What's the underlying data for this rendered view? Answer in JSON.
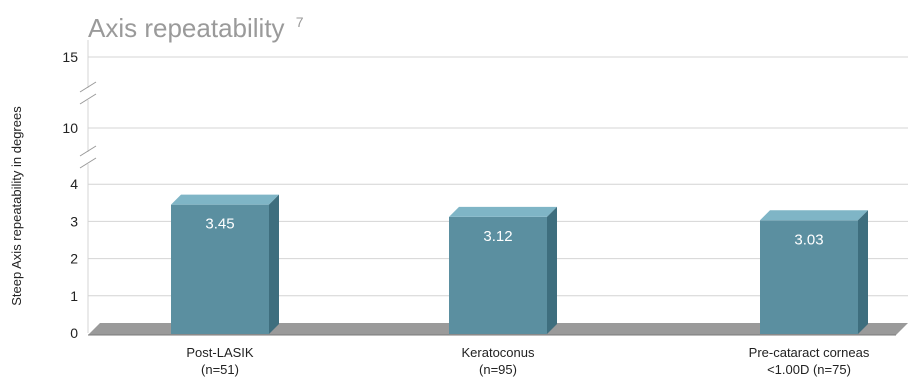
{
  "chart_data": {
    "type": "bar",
    "title": "Axis repeatability",
    "title_superscript": "7",
    "ylabel": "Steep Axis repeatability in degrees",
    "xlabel": "",
    "y_ticks": [
      "0",
      "1",
      "2",
      "3",
      "4",
      "10",
      "15"
    ],
    "axis_breaks": true,
    "categories": [
      [
        "Post-LASIK",
        "(n=51)"
      ],
      [
        "Keratoconus",
        "(n=95)"
      ],
      [
        "Pre-cataract corneas",
        "<1.00D (n=75)"
      ]
    ],
    "values": [
      3.45,
      3.12,
      3.03
    ],
    "value_labels": [
      "3.45",
      "3.12",
      "3.03"
    ],
    "ylim": [
      0,
      15
    ],
    "grid": true,
    "colors": {
      "bar_front": "#5b8fa0",
      "bar_top": "#7fb5c6",
      "bar_side": "#3e6e7e",
      "floor": "#9a9a9a",
      "grid": "#d4d4d4",
      "title": "#9a9a9a"
    }
  }
}
